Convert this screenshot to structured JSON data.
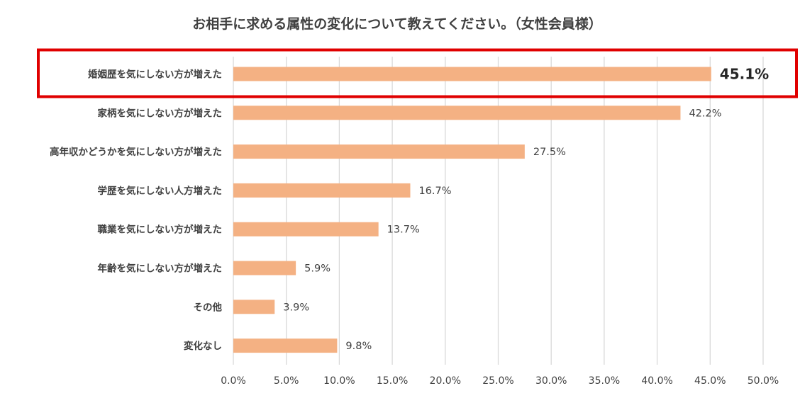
{
  "chart_data": {
    "type": "bar",
    "orientation": "horizontal",
    "title": "お相手に求める属性の変化について教えてください。（女性会員様）",
    "categories": [
      "婚姻歴を気にしない方が増えた",
      "家柄を気にしない方が増えた",
      "高年収かどうかを気にしない方が増えた",
      "学歴を気にしない人方増えた",
      "職業を気にしない方が増えた",
      "年齢を気にしない方が増えた",
      "その他",
      "変化なし"
    ],
    "values": [
      45.1,
      42.2,
      27.5,
      16.7,
      13.7,
      5.9,
      3.9,
      9.8
    ],
    "value_labels": [
      "45.1%",
      "42.2%",
      "27.5%",
      "16.7%",
      "13.7%",
      "5.9%",
      "3.9%",
      "9.8%"
    ],
    "xlim": [
      0,
      50
    ],
    "x_ticks": [
      "0.0%",
      "5.0%",
      "10.0%",
      "15.0%",
      "20.0%",
      "25.0%",
      "30.0%",
      "35.0%",
      "40.0%",
      "45.0%",
      "50.0%"
    ],
    "grid": "vertical",
    "highlighted_category": "婚姻歴を気にしない方が増えた",
    "colors": {
      "bar": "#f4b183",
      "grid": "#d9d9d9",
      "highlight_box": "#e00000",
      "text": "#404040"
    }
  }
}
